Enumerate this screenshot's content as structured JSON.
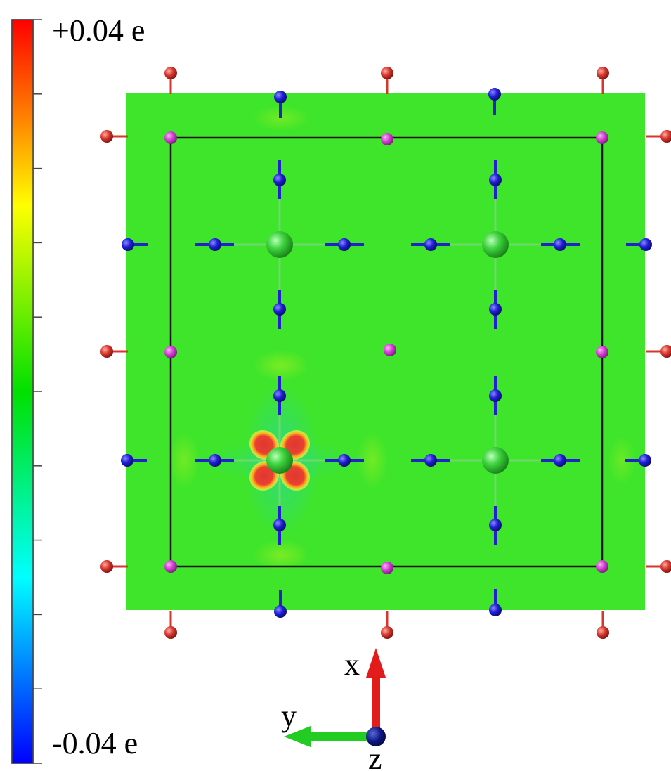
{
  "colorbar": {
    "max_label": "+0.04 e",
    "min_label": "-0.04 e",
    "max_value": 0.04,
    "min_value": -0.04,
    "colormap": [
      "#0000ff",
      "#00ffff",
      "#00ff00",
      "#ffff00",
      "#ff8000",
      "#ff0000"
    ]
  },
  "axes": {
    "x_label": "x",
    "y_label": "y",
    "z_label": "z",
    "x_color": "#e21b1b",
    "y_color": "#22cc22",
    "z_color": "#0a1580"
  },
  "atom_colors": {
    "metal_center": "#37c437",
    "nitrogen": "#1f1fd6",
    "oxygen": "#d8362c",
    "magenta": "#d23ed2"
  },
  "plane_color": "#3fe52a",
  "density_feature": "d-orbital-like charge lobes around lower-left metal center"
}
